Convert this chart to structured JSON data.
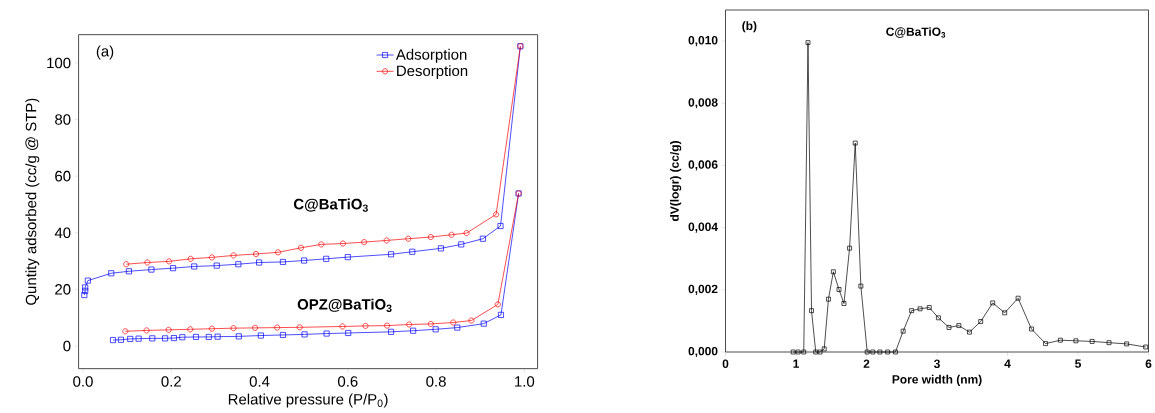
{
  "chart_data": [
    {
      "type": "line",
      "title": "(a)",
      "xlabel": "Relative pressure (P/P$_{0}$)",
      "ylabel": "Quntity adsorbed (cc/g @ STP)",
      "xlim": [
        -0.01,
        1.03
      ],
      "ylim": [
        -8,
        110
      ],
      "xticks": [
        {
          "value": 0,
          "label": "0.0"
        },
        {
          "value": 0.2,
          "label": "0.2"
        },
        {
          "value": 0.4,
          "label": "0.4"
        },
        {
          "value": 0.6,
          "label": "0.6"
        },
        {
          "value": 0.8,
          "label": "0.8"
        },
        {
          "value": 1,
          "label": "1.0"
        }
      ],
      "yticks": [
        0,
        20,
        40,
        60,
        80,
        100
      ],
      "legend": "top right",
      "line_style": "solid",
      "annotations": [
        "C@BaTiO$_{3}$",
        "OPZ@BaTiO$_{3}$"
      ],
      "series": [
        {
          "name": "Adsorption",
          "color": "#0000ff",
          "marker": "square",
          "x": [
            0.003,
            0.005,
            0.005,
            0.011,
            0.064,
            0.104,
            0.155,
            0.204,
            0.252,
            0.303,
            0.352,
            0.399,
            0.453,
            0.501,
            0.551,
            0.6,
            0.698,
            0.746,
            0.811,
            0.857,
            0.906,
            0.946,
            0.991
          ],
          "values": [
            18.0,
            19.5,
            20.7,
            23.1,
            25.7,
            26.4,
            27.0,
            27.5,
            28.1,
            28.4,
            28.9,
            29.5,
            29.7,
            30.2,
            30.8,
            31.4,
            32.4,
            33.3,
            34.5,
            35.9,
            37.9,
            42.4,
            105.9
          ]
        },
        {
          "name": "Desorption",
          "color": "#ff0000",
          "marker": "circle",
          "x": [
            0.098,
            0.146,
            0.195,
            0.244,
            0.292,
            0.341,
            0.392,
            0.442,
            0.494,
            0.54,
            0.589,
            0.637,
            0.688,
            0.737,
            0.788,
            0.835,
            0.869,
            0.936,
            0.991
          ],
          "values": [
            28.9,
            29.5,
            29.9,
            30.8,
            31.3,
            32.0,
            32.5,
            33.1,
            34.7,
            35.9,
            36.2,
            36.7,
            37.3,
            37.9,
            38.5,
            39.3,
            39.9,
            46.5,
            105.9
          ]
        },
        {
          "color": "#0000ff",
          "marker": "square",
          "x": [
            0.068,
            0.086,
            0.107,
            0.126,
            0.157,
            0.186,
            0.206,
            0.225,
            0.256,
            0.285,
            0.305,
            0.353,
            0.403,
            0.453,
            0.502,
            0.552,
            0.601,
            0.698,
            0.748,
            0.799,
            0.848,
            0.908,
            0.947,
            0.987
          ],
          "values": [
            2.1,
            2.2,
            2.5,
            2.6,
            2.7,
            2.7,
            2.8,
            3.1,
            3.2,
            3.2,
            3.3,
            3.4,
            3.7,
            3.9,
            4.1,
            4.4,
            4.6,
            5.0,
            5.4,
            5.9,
            6.5,
            7.9,
            11.0,
            53.9
          ]
        },
        {
          "color": "#ff0000",
          "marker": "circle",
          "x": [
            0.096,
            0.144,
            0.194,
            0.243,
            0.292,
            0.341,
            0.39,
            0.44,
            0.491,
            0.588,
            0.64,
            0.689,
            0.739,
            0.788,
            0.839,
            0.88,
            0.94,
            0.987
          ],
          "values": [
            5.2,
            5.5,
            5.7,
            5.9,
            6.1,
            6.3,
            6.4,
            6.5,
            6.6,
            6.9,
            7.1,
            7.2,
            7.6,
            7.8,
            8.3,
            9.0,
            14.7,
            53.9
          ]
        }
      ]
    },
    {
      "type": "line",
      "title": "(b)",
      "xlabel": "Pore width (nm)",
      "ylabel": "dV(logr) (cc/g)",
      "xlim": [
        0,
        6
      ],
      "ylim": [
        0,
        0.011
      ],
      "xticks": [
        0,
        1,
        2,
        3,
        4,
        5,
        6
      ],
      "yticks": [
        {
          "value": 0,
          "label": "0,000"
        },
        {
          "value": 0.002,
          "label": "0,002"
        },
        {
          "value": 0.004,
          "label": "0,004"
        },
        {
          "value": 0.006,
          "label": "0,006"
        },
        {
          "value": 0.008,
          "label": "0,008"
        },
        {
          "value": 0.01,
          "label": "0,010"
        }
      ],
      "marker": "square",
      "line_style": "solid",
      "annotations": [
        "C@BaTiO$_{3}$"
      ],
      "series": [
        {
          "color": "#000000",
          "x": [
            0.96,
            1.03,
            1.11,
            1.17,
            1.22,
            1.28,
            1.34,
            1.4,
            1.46,
            1.53,
            1.61,
            1.68,
            1.76,
            1.84,
            1.92,
            2.01,
            2.09,
            2.19,
            2.3,
            2.41,
            2.52,
            2.64,
            2.76,
            2.89,
            3.02,
            3.17,
            3.31,
            3.46,
            3.62,
            3.79,
            3.96,
            4.15,
            4.34,
            4.54,
            4.75,
            4.97,
            5.2,
            5.44,
            5.69,
            5.96
          ],
          "values": [
            0,
            0,
            0,
            0.00995,
            0.00133,
            0,
            0,
            0.0001,
            0.0017,
            0.00258,
            0.00201,
            0.00156,
            0.00334,
            0.00672,
            0.00212,
            0,
            0,
            0,
            0,
            0,
            0.00067,
            0.00133,
            0.00139,
            0.00143,
            0.0011,
            0.00079,
            0.00085,
            0.00064,
            0.00098,
            0.00158,
            0.00126,
            0.00173,
            0.00074,
            0.00027,
            0.00038,
            0.00036,
            0.00034,
            0.0003,
            0.00026,
            0.00016
          ]
        }
      ]
    }
  ]
}
